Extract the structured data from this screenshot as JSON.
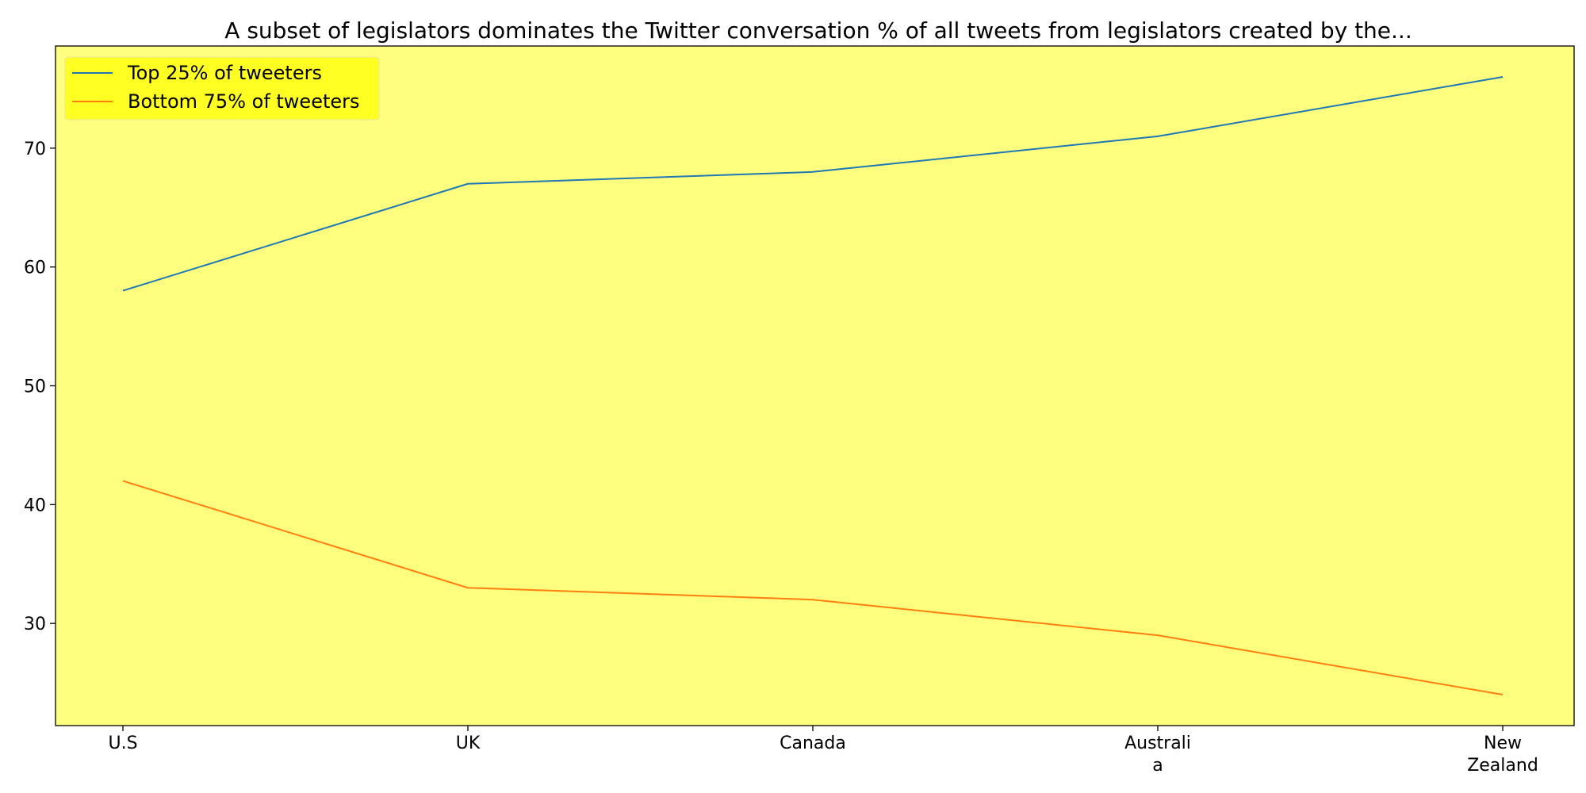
{
  "chart_data": {
    "type": "line",
    "title": "A subset of legislators dominates the Twitter conversation % of all tweets from legislators created by the...",
    "xlabel": "",
    "ylabel": "",
    "categories": [
      [
        "U.S"
      ],
      [
        "UK"
      ],
      [
        "Canada"
      ],
      [
        "Australi",
        "a"
      ],
      [
        "New",
        "Zealand"
      ]
    ],
    "series": [
      {
        "name": "Top 25% of tweeters",
        "values": [
          58,
          67,
          68,
          71,
          76
        ],
        "color": "#1f77b4"
      },
      {
        "name": "Bottom 75% of tweeters",
        "values": [
          42,
          33,
          32,
          29,
          24
        ],
        "color": "#ff7f0e"
      }
    ],
    "ylim": [
      21.4,
      78.6
    ],
    "yticks": [
      30,
      40,
      50,
      60,
      70
    ],
    "grid": false,
    "legend_position": "top-left",
    "background_color": "#ffff7f",
    "legend_background": "#ffff1a"
  }
}
